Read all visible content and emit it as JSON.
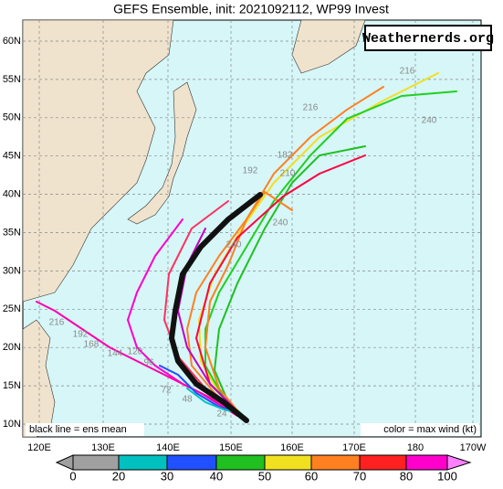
{
  "header": {
    "title": "GEFS Ensemble, init: 2021092112, WP99 Invest",
    "watermark": "Weathernerds.org"
  },
  "map": {
    "lat_labels": [
      "60N",
      "55N",
      "50N",
      "45N",
      "40N",
      "35N",
      "30N",
      "25N",
      "20N",
      "15N",
      "10N"
    ],
    "lon_labels": [
      "120E",
      "130E",
      "140E",
      "150E",
      "160E",
      "170E",
      "180",
      "170W"
    ],
    "track_labels": [
      "216",
      "240",
      "216",
      "182",
      "192",
      "210",
      "240",
      "240",
      "216",
      "192",
      "168",
      "144",
      "120",
      "96",
      "72",
      "48",
      "24"
    ],
    "note_left": "black line = ens mean",
    "note_right": "color = max wind (kt)"
  },
  "colorbar": {
    "labels": [
      "0",
      "20",
      "30",
      "40",
      "50",
      "60",
      "70",
      "80",
      "100"
    ]
  }
}
